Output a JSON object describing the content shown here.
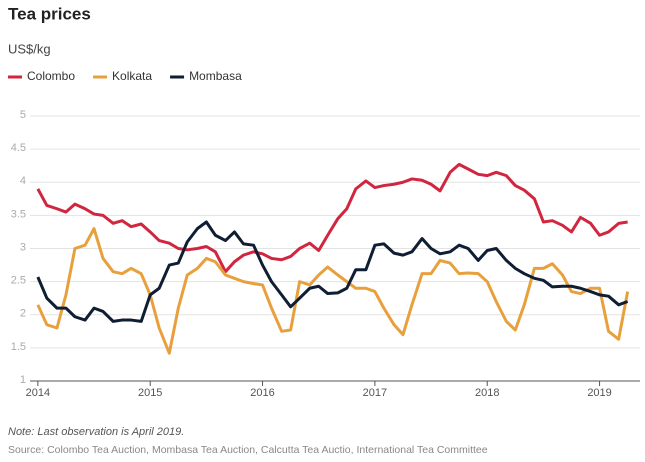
{
  "chart_data": {
    "type": "line",
    "title": "Tea prices",
    "y_label": "US$/kg",
    "note": "Note: Last observation is April 2019.",
    "source": "Source: Colombo Tea Auction, Mombasa Tea Auction, Calcutta Tea Auctio, International Tea Committee",
    "x": [
      2014,
      2014.08,
      2014.17,
      2014.25,
      2014.33,
      2014.42,
      2014.5,
      2014.58,
      2014.67,
      2014.75,
      2014.83,
      2014.92,
      2015,
      2015.08,
      2015.17,
      2015.25,
      2015.33,
      2015.42,
      2015.5,
      2015.58,
      2015.67,
      2015.75,
      2015.83,
      2015.92,
      2016,
      2016.08,
      2016.17,
      2016.25,
      2016.33,
      2016.42,
      2016.5,
      2016.58,
      2016.67,
      2016.75,
      2016.83,
      2016.92,
      2017,
      2017.08,
      2017.17,
      2017.25,
      2017.33,
      2017.42,
      2017.5,
      2017.58,
      2017.67,
      2017.75,
      2017.83,
      2017.92,
      2018,
      2018.08,
      2018.17,
      2018.25,
      2018.33,
      2018.42,
      2018.5,
      2018.58,
      2018.67,
      2018.75,
      2018.83,
      2018.92,
      2019,
      2019.08,
      2019.17,
      2019.25
    ],
    "series": [
      {
        "name": "Colombo",
        "color": "#d0263f",
        "values": [
          3.9,
          3.65,
          3.6,
          3.55,
          3.67,
          3.6,
          3.52,
          3.5,
          3.38,
          3.42,
          3.33,
          3.37,
          3.25,
          3.12,
          3.08,
          3.0,
          2.98,
          3.0,
          3.03,
          2.95,
          2.65,
          2.8,
          2.9,
          2.95,
          2.92,
          2.85,
          2.83,
          2.88,
          3.0,
          3.08,
          2.97,
          3.2,
          3.45,
          3.6,
          3.9,
          4.02,
          3.92,
          3.95,
          3.97,
          4.0,
          4.05,
          4.03,
          3.97,
          3.87,
          4.15,
          4.27,
          4.2,
          4.12,
          4.1,
          4.15,
          4.1,
          3.95,
          3.88,
          3.75,
          3.4,
          3.42,
          3.35,
          3.25,
          3.47,
          3.38,
          3.2,
          3.25,
          3.38,
          3.4
        ]
      },
      {
        "name": "Kolkata",
        "color": "#e8a03c",
        "values": [
          2.15,
          1.85,
          1.8,
          2.3,
          3.0,
          3.05,
          3.3,
          2.85,
          2.65,
          2.62,
          2.7,
          2.62,
          2.3,
          1.8,
          1.42,
          2.1,
          2.6,
          2.7,
          2.85,
          2.8,
          2.6,
          2.55,
          2.5,
          2.47,
          2.45,
          2.1,
          1.75,
          1.77,
          2.5,
          2.45,
          2.6,
          2.72,
          2.6,
          2.5,
          2.4,
          2.4,
          2.35,
          2.1,
          1.85,
          1.7,
          2.15,
          2.62,
          2.62,
          2.82,
          2.78,
          2.62,
          2.63,
          2.62,
          2.5,
          2.2,
          1.9,
          1.77,
          2.15,
          2.7,
          2.7,
          2.77,
          2.6,
          2.35,
          2.32,
          2.4,
          2.4,
          1.75,
          1.63,
          2.35
        ]
      },
      {
        "name": "Mombasa",
        "color": "#0f1e33",
        "values": [
          2.57,
          2.25,
          2.1,
          2.1,
          1.97,
          1.92,
          2.1,
          2.05,
          1.9,
          1.92,
          1.92,
          1.9,
          2.3,
          2.4,
          2.75,
          2.78,
          3.1,
          3.3,
          3.4,
          3.2,
          3.12,
          3.25,
          3.07,
          3.05,
          2.75,
          2.5,
          2.3,
          2.12,
          2.25,
          2.4,
          2.43,
          2.32,
          2.33,
          2.4,
          2.68,
          2.68,
          3.05,
          3.07,
          2.93,
          2.9,
          2.95,
          3.15,
          3.0,
          2.92,
          2.95,
          3.05,
          3.0,
          2.82,
          2.97,
          3.0,
          2.82,
          2.7,
          2.62,
          2.55,
          2.52,
          2.42,
          2.43,
          2.43,
          2.4,
          2.35,
          2.3,
          2.28,
          2.15,
          2.2
        ]
      }
    ],
    "xlim": [
      2013.93,
      2019.36
    ],
    "xticks": [
      2014,
      2015,
      2016,
      2017,
      2018,
      2019
    ],
    "ylim": [
      1,
      5
    ],
    "yticks": [
      1,
      1.5,
      2,
      2.5,
      3,
      3.5,
      4,
      4.5,
      5
    ],
    "grid": true
  }
}
